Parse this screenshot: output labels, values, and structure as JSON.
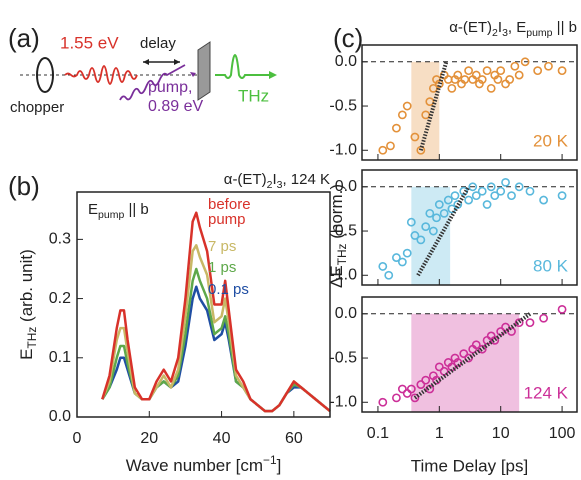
{
  "diagram": {
    "label": "(a)",
    "pulse": "1.55 eV",
    "delay": "delay",
    "chopper": "chopper",
    "pump": "pump,",
    "pump_energy": "0.89 eV",
    "thz": "THz"
  },
  "chart_data": [
    {
      "type": "line",
      "label": "(b)",
      "title": [
        "α-(ET)",
        "2",
        "I",
        "3",
        ", 124 K"
      ],
      "annotation": [
        "E",
        "pump",
        " || b"
      ],
      "xlabel": [
        "Wave number [cm",
        "−1",
        "]"
      ],
      "ylabel": [
        "E",
        "THz",
        " (arb. unit)"
      ],
      "xlim": [
        0,
        70
      ],
      "xticks": [
        0,
        20,
        40,
        60
      ],
      "ylim": [
        0,
        0.38
      ],
      "yticks": [
        {
          "value": 0,
          "label": "0.0"
        },
        0.1,
        0.2,
        0.3
      ],
      "x": [
        7,
        9,
        11,
        12,
        13,
        14,
        16,
        18,
        20,
        22,
        24,
        26,
        28,
        30,
        32,
        33,
        34,
        36,
        38,
        40,
        41,
        42,
        44,
        46,
        48,
        50,
        52,
        54,
        56,
        58,
        60,
        62,
        64,
        66,
        68,
        70
      ],
      "series": [
        {
          "name": "before pump",
          "color": "#d8322a",
          "values": [
            0.03,
            0.07,
            0.15,
            0.18,
            0.18,
            0.13,
            0.05,
            0.03,
            0.03,
            0.06,
            0.08,
            0.06,
            0.1,
            0.2,
            0.33,
            0.345,
            0.32,
            0.28,
            0.19,
            0.19,
            0.23,
            0.18,
            0.08,
            0.06,
            0.03,
            0.02,
            0.01,
            0.01,
            0.02,
            0.04,
            0.06,
            0.05,
            0.04,
            0.03,
            0.02,
            0.01
          ]
        },
        {
          "name": "7 ps",
          "color": "#c8b866",
          "values": [
            0.03,
            0.06,
            0.13,
            0.15,
            0.15,
            0.11,
            0.04,
            0.03,
            0.03,
            0.05,
            0.07,
            0.05,
            0.08,
            0.17,
            0.28,
            0.29,
            0.27,
            0.24,
            0.16,
            0.17,
            0.2,
            0.16,
            0.07,
            0.05,
            0.03,
            0.02,
            0.01,
            0.01,
            0.02,
            0.04,
            0.06,
            0.05,
            0.04,
            0.03,
            0.02,
            0.01
          ]
        },
        {
          "name": "1 ps",
          "color": "#5ea84a",
          "values": [
            0.03,
            0.05,
            0.1,
            0.12,
            0.12,
            0.09,
            0.04,
            0.03,
            0.03,
            0.05,
            0.06,
            0.05,
            0.07,
            0.14,
            0.23,
            0.25,
            0.23,
            0.2,
            0.14,
            0.15,
            0.17,
            0.14,
            0.06,
            0.05,
            0.03,
            0.02,
            0.01,
            0.01,
            0.02,
            0.04,
            0.055,
            0.05,
            0.04,
            0.03,
            0.02,
            0.01
          ]
        },
        {
          "name": "0.1 ps",
          "color": "#1f4ea3",
          "values": [
            0.03,
            0.05,
            0.08,
            0.1,
            0.1,
            0.08,
            0.04,
            0.03,
            0.03,
            0.05,
            0.06,
            0.05,
            0.06,
            0.12,
            0.2,
            0.22,
            0.2,
            0.18,
            0.13,
            0.14,
            0.16,
            0.13,
            0.06,
            0.05,
            0.03,
            0.02,
            0.01,
            0.01,
            0.02,
            0.04,
            0.05,
            0.05,
            0.04,
            0.03,
            0.02,
            0.01
          ]
        }
      ]
    },
    {
      "type": "scatter",
      "label": "(c)",
      "title": [
        "α-(ET)",
        "2",
        "I",
        "3",
        ", E",
        "pump",
        " || b"
      ],
      "xlabel": "Time Delay [ps]",
      "ylabel": [
        "ΔE",
        "THz",
        " (norm.)"
      ],
      "log_x": true,
      "xlim": [
        0.055,
        175
      ],
      "xticks": [
        0.1,
        1,
        10,
        100
      ],
      "ylim": [
        -1.11,
        0.19
      ],
      "yticks": [
        {
          "value": -1,
          "label": "-1.0"
        },
        -0.5,
        {
          "value": 0,
          "label": "0.0"
        }
      ],
      "panels": [
        {
          "name": "20 K",
          "color": "#e3913a",
          "shade": [
            0.35,
            1
          ],
          "x": [
            0.12,
            0.16,
            0.2,
            0.25,
            0.3,
            0.4,
            0.5,
            0.6,
            0.7,
            0.8,
            0.9,
            1,
            1.2,
            1.4,
            1.6,
            1.8,
            2,
            2.3,
            2.6,
            3,
            3.5,
            4,
            4.5,
            5,
            6,
            7,
            8,
            9,
            10,
            12,
            14,
            17,
            20,
            25,
            40,
            60,
            100
          ],
          "values": [
            -1,
            -0.95,
            -0.75,
            -0.6,
            -0.5,
            -0.85,
            -1,
            -0.6,
            -0.45,
            -0.3,
            -0.2,
            -0.25,
            -0.15,
            -0.2,
            -0.3,
            -0.2,
            -0.15,
            -0.25,
            -0.2,
            -0.1,
            -0.2,
            -0.15,
            -0.25,
            -0.2,
            -0.1,
            -0.3,
            -0.15,
            -0.2,
            -0.1,
            -0.25,
            -0.2,
            -0.05,
            -0.15,
            0,
            -0.1,
            -0.05,
            -0.1
          ],
          "fit": {
            "x": [
              0.5,
              1.3
            ],
            "values": [
              -1,
              0
            ]
          }
        },
        {
          "name": "80 K",
          "color": "#59b8dc",
          "shade": [
            0.35,
            1.5
          ],
          "x": [
            0.12,
            0.15,
            0.2,
            0.25,
            0.3,
            0.35,
            0.4,
            0.5,
            0.6,
            0.7,
            0.8,
            0.9,
            1,
            1.2,
            1.4,
            1.6,
            1.8,
            2,
            2.5,
            3,
            3.5,
            4,
            5,
            6,
            7,
            8,
            10,
            12,
            15,
            20,
            30,
            50,
            100
          ],
          "values": [
            -0.9,
            -1,
            -0.8,
            -0.85,
            -0.75,
            -0.4,
            -0.55,
            -0.6,
            -0.45,
            -0.3,
            -0.5,
            -0.35,
            -0.2,
            -0.3,
            -0.15,
            -0.25,
            -0.1,
            -0.2,
            -0.05,
            -0.15,
            0,
            -0.1,
            -0.05,
            -0.2,
            0,
            -0.1,
            -0.05,
            0.05,
            -0.1,
            0,
            -0.05,
            -0.15,
            -0.1
          ],
          "fit": {
            "x": [
              0.45,
              3
            ],
            "values": [
              -1,
              0
            ]
          }
        },
        {
          "name": "124 K",
          "color": "#cc2f98",
          "shade": [
            0.35,
            20
          ],
          "x": [
            0.12,
            0.2,
            0.25,
            0.3,
            0.35,
            0.4,
            0.5,
            0.6,
            0.7,
            0.8,
            0.9,
            1,
            1.2,
            1.4,
            1.6,
            1.8,
            2,
            2.5,
            3,
            3.5,
            4,
            5,
            6,
            7,
            8,
            10,
            12,
            15,
            20,
            30,
            50,
            100
          ],
          "values": [
            -1,
            -0.95,
            -0.85,
            -0.9,
            -0.85,
            -0.95,
            -0.8,
            -0.75,
            -0.85,
            -0.7,
            -0.75,
            -0.6,
            -0.65,
            -0.55,
            -0.6,
            -0.5,
            -0.55,
            -0.45,
            -0.5,
            -0.4,
            -0.35,
            -0.4,
            -0.3,
            -0.25,
            -0.3,
            -0.2,
            -0.15,
            -0.2,
            -0.1,
            -0.1,
            -0.05,
            0.05
          ],
          "fit": {
            "x": [
              0.4,
              30
            ],
            "values": [
              -0.95,
              0
            ]
          }
        }
      ]
    }
  ]
}
